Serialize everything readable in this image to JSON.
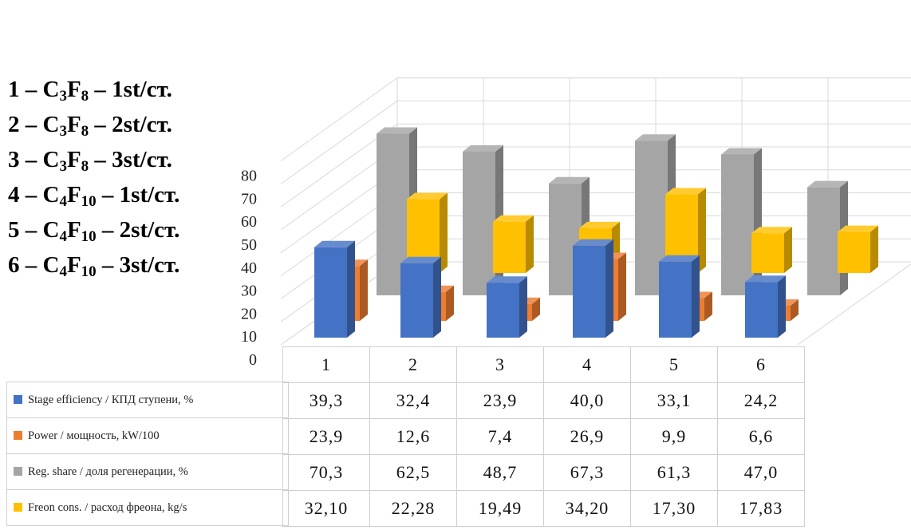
{
  "legend_lines": [
    {
      "num": "1",
      "formula_a": "C",
      "sub_a": "3",
      "formula_b": "F",
      "sub_b": "8",
      "stage": "1st/ст."
    },
    {
      "num": "2",
      "formula_a": "C",
      "sub_a": "3",
      "formula_b": "F",
      "sub_b": "8",
      "stage": "2st/ст."
    },
    {
      "num": "3",
      "formula_a": "C",
      "sub_a": "3",
      "formula_b": "F",
      "sub_b": "8",
      "stage": "3st/ст."
    },
    {
      "num": "4",
      "formula_a": "C",
      "sub_a": "4",
      "formula_b": "F",
      "sub_b": "10",
      "stage": "1st/ст."
    },
    {
      "num": "5",
      "formula_a": "C",
      "sub_a": "4",
      "formula_b": "F",
      "sub_b": "10",
      "stage": "2st/ст."
    },
    {
      "num": "6",
      "formula_a": "C",
      "sub_a": "4",
      "formula_b": "F",
      "sub_b": "10",
      "stage": "3st/ст."
    }
  ],
  "chart_data": {
    "type": "bar",
    "style": "3d-column",
    "categories": [
      "1",
      "2",
      "3",
      "4",
      "5",
      "6"
    ],
    "ylim": [
      0,
      80
    ],
    "yticks": [
      "0",
      "10",
      "20",
      "30",
      "40",
      "50",
      "60",
      "70",
      "80"
    ],
    "grid": true,
    "legend_placement": "data-table",
    "series": [
      {
        "name": "Stage efficiency / КПД ступени, %",
        "color": "#4472C4",
        "values": [
          39.3,
          32.4,
          23.9,
          40.0,
          33.1,
          24.2
        ],
        "labels": [
          "39,3",
          "32,4",
          "23,9",
          "40,0",
          "33,1",
          "24,2"
        ]
      },
      {
        "name": "Power / мощность, kW/100",
        "color": "#ED7D31",
        "values": [
          23.9,
          12.6,
          7.4,
          26.9,
          9.9,
          6.6
        ],
        "labels": [
          "23,9",
          "12,6",
          "7,4",
          "26,9",
          "9,9",
          "6,6"
        ]
      },
      {
        "name": "Reg. share / доля регенерации, %",
        "color": "#A5A5A5",
        "values": [
          70.3,
          62.5,
          48.7,
          67.3,
          61.3,
          47.0
        ],
        "labels": [
          "70,3",
          "62,5",
          "48,7",
          "67,3",
          "61,3",
          "47,0"
        ]
      },
      {
        "name": "Freon cons. / расход фреона, kg/s",
        "color": "#FFC000",
        "values": [
          32.1,
          22.28,
          19.49,
          34.2,
          17.3,
          17.83
        ],
        "labels": [
          "32,10",
          "22,28",
          "19,49",
          "34,20",
          "17,30",
          "17,83"
        ]
      }
    ]
  }
}
